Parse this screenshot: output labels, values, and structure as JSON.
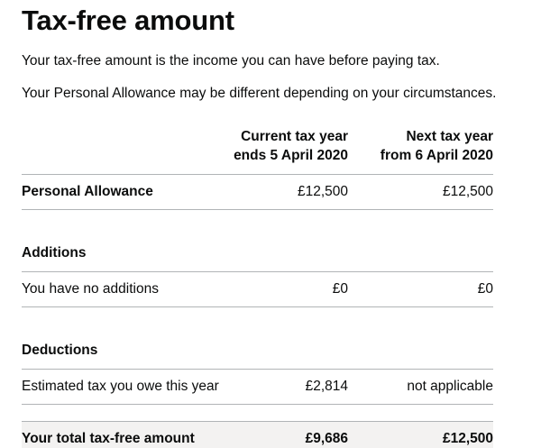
{
  "page": {
    "title": "Tax-free amount",
    "intro_1": "Your tax-free amount is the income you can have before paying tax.",
    "intro_2": "Your Personal Allowance may be different depending on your circumstances."
  },
  "table": {
    "headers": {
      "current_line1": "Current tax year",
      "current_line2": "ends 5 April 2020",
      "next_line1": "Next tax year",
      "next_line2": "from 6 April 2020"
    },
    "personal_allowance": {
      "label": "Personal Allowance",
      "current": "£12,500",
      "next": "£12,500"
    },
    "additions": {
      "heading": "Additions",
      "row_label": "You have no additions",
      "current": "£0",
      "next": "£0"
    },
    "deductions": {
      "heading": "Deductions",
      "row_label": "Estimated tax you owe this year",
      "current": "£2,814",
      "next": "not applicable"
    },
    "total": {
      "label": "Your total tax-free amount",
      "current": "£9,686",
      "next": "£12,500"
    }
  }
}
